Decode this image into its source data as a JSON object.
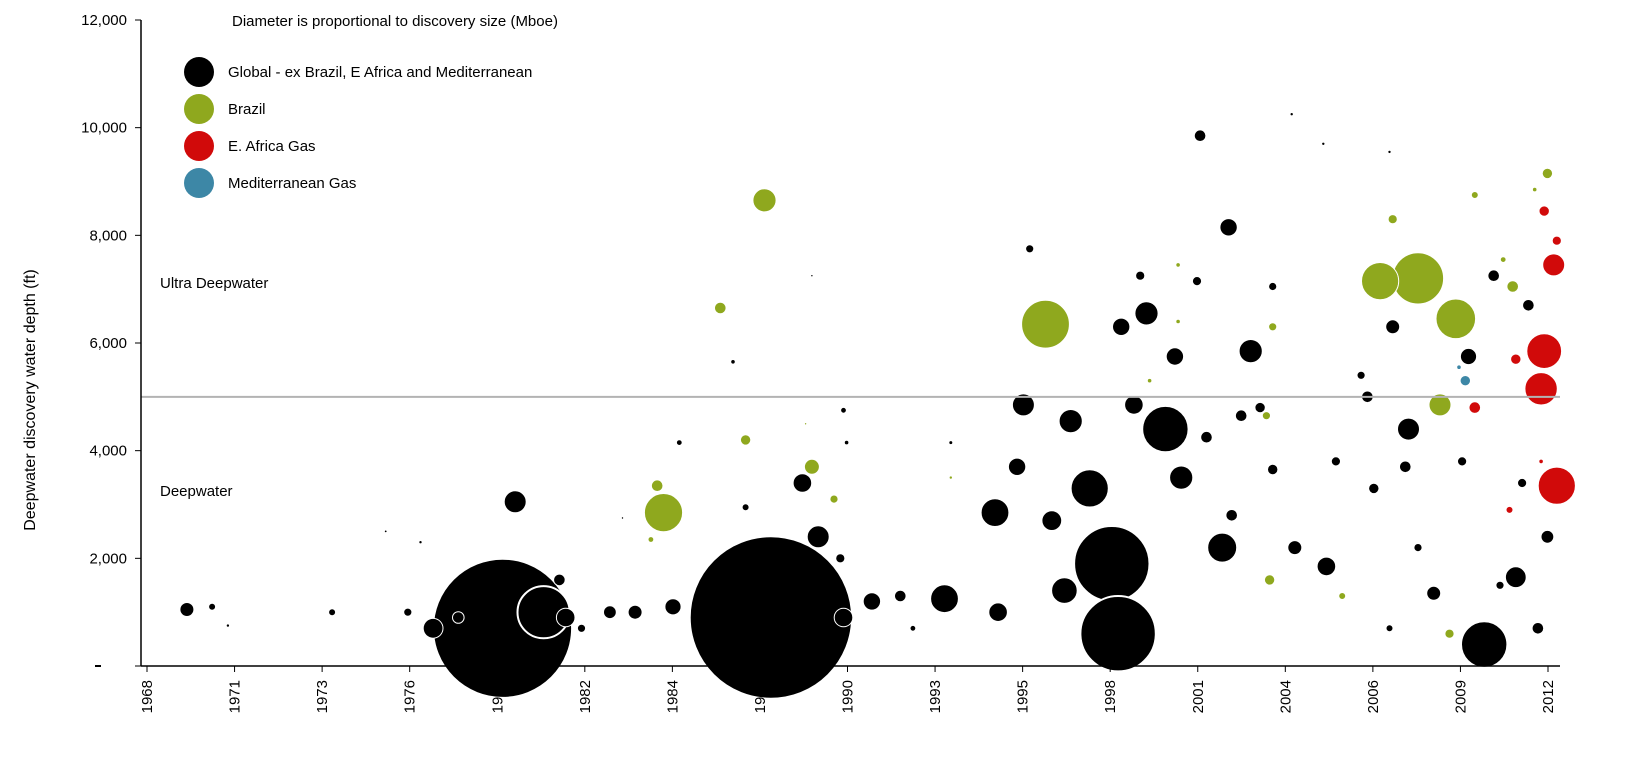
{
  "chart_data": {
    "type": "scatter",
    "subtype": "bubble",
    "annotation": "Diameter is proportional to discovery size (Mboe)",
    "ylabel": "Deepwater discovery water depth (ft)",
    "xlabel": "",
    "x_ticks": [
      "1968",
      "1971",
      "1973",
      "1976",
      "1979",
      "1982",
      "1984",
      "1987",
      "1990",
      "1993",
      "1995",
      "1998",
      "2001",
      "2004",
      "2006",
      "2009",
      "2012"
    ],
    "y_ticks": [
      "",
      "2,000",
      "4,000",
      "6,000",
      "8,000",
      "10,000",
      "12,000"
    ],
    "ylim": [
      0,
      12000
    ],
    "xlim": [
      1968,
      2013
    ],
    "grid": false,
    "legend_position": "top-left",
    "threshold": {
      "value": 5000,
      "above_label": "Ultra Deepwater",
      "below_label": "Deepwater"
    },
    "colors": {
      "global": "#000000",
      "brazil": "#8fa81e",
      "eafrica": "#d10a0a",
      "med": "#3d87a6",
      "threshold": "#b3b3b3"
    },
    "series": [
      {
        "key": "global",
        "name": "Global - ex Brazil, E Africa and Mediterranean",
        "points": [
          {
            "year": 1969.2,
            "depth": 1050,
            "size": 1.2
          },
          {
            "year": 1970.0,
            "depth": 1100,
            "size": 0.6
          },
          {
            "year": 1970.5,
            "depth": 750,
            "size": 0.3
          },
          {
            "year": 1973.8,
            "depth": 1000,
            "size": 0.6
          },
          {
            "year": 1975.5,
            "depth": 2500,
            "size": 0.25
          },
          {
            "year": 1976.2,
            "depth": 1000,
            "size": 0.7
          },
          {
            "year": 1976.6,
            "depth": 2300,
            "size": 0.3
          },
          {
            "year": 1977.0,
            "depth": 700,
            "size": 1.7
          },
          {
            "year": 1977.8,
            "depth": 900,
            "size": 1.0
          },
          {
            "year": 1979.2,
            "depth": 700,
            "size": 12
          },
          {
            "year": 1979.6,
            "depth": 3050,
            "size": 1.9
          },
          {
            "year": 1980.5,
            "depth": 1000,
            "size": 4.5
          },
          {
            "year": 1981.2,
            "depth": 900,
            "size": 1.6
          },
          {
            "year": 1981.0,
            "depth": 1600,
            "size": 1.0
          },
          {
            "year": 1981.7,
            "depth": 700,
            "size": 0.7
          },
          {
            "year": 1982.6,
            "depth": 1000,
            "size": 1.1
          },
          {
            "year": 1983.4,
            "depth": 1000,
            "size": 1.2
          },
          {
            "year": 1983.0,
            "depth": 2750,
            "size": 0.2
          },
          {
            "year": 1984.6,
            "depth": 1100,
            "size": 1.4
          },
          {
            "year": 1984.8,
            "depth": 4150,
            "size": 0.5
          },
          {
            "year": 1986.9,
            "depth": 2950,
            "size": 0.6
          },
          {
            "year": 1986.5,
            "depth": 5650,
            "size": 0.4
          },
          {
            "year": 1987.7,
            "depth": 900,
            "size": 14
          },
          {
            "year": 1989.0,
            "depth": 7250,
            "size": 0.2
          },
          {
            "year": 1988.7,
            "depth": 3400,
            "size": 1.6
          },
          {
            "year": 1989.2,
            "depth": 2400,
            "size": 1.9
          },
          {
            "year": 1989.9,
            "depth": 2000,
            "size": 0.8
          },
          {
            "year": 1990.0,
            "depth": 4750,
            "size": 0.5
          },
          {
            "year": 1990.1,
            "depth": 4150,
            "size": 0.4
          },
          {
            "year": 1990.0,
            "depth": 900,
            "size": 1.6
          },
          {
            "year": 1990.9,
            "depth": 1200,
            "size": 1.5
          },
          {
            "year": 1991.8,
            "depth": 1300,
            "size": 1.0
          },
          {
            "year": 1992.2,
            "depth": 700,
            "size": 0.5
          },
          {
            "year": 1993.2,
            "depth": 1250,
            "size": 2.4
          },
          {
            "year": 1993.4,
            "depth": 4150,
            "size": 0.35
          },
          {
            "year": 1994.8,
            "depth": 2850,
            "size": 2.4
          },
          {
            "year": 1994.9,
            "depth": 1000,
            "size": 1.6
          },
          {
            "year": 1995.7,
            "depth": 4850,
            "size": 1.9
          },
          {
            "year": 1995.5,
            "depth": 3700,
            "size": 1.5
          },
          {
            "year": 1995.9,
            "depth": 7750,
            "size": 0.7
          },
          {
            "year": 1996.6,
            "depth": 2700,
            "size": 1.7
          },
          {
            "year": 1997.2,
            "depth": 4550,
            "size": 2.0
          },
          {
            "year": 1997.0,
            "depth": 1400,
            "size": 2.2
          },
          {
            "year": 1997.8,
            "depth": 3300,
            "size": 3.2
          },
          {
            "year": 1998.8,
            "depth": 6300,
            "size": 1.5
          },
          {
            "year": 1998.5,
            "depth": 1900,
            "size": 6.5
          },
          {
            "year": 1998.7,
            "depth": 600,
            "size": 6.5
          },
          {
            "year": 1999.2,
            "depth": 4850,
            "size": 1.6
          },
          {
            "year": 1999.4,
            "depth": 7250,
            "size": 0.8
          },
          {
            "year": 1999.6,
            "depth": 6550,
            "size": 2.0
          },
          {
            "year": 2000.2,
            "depth": 4400,
            "size": 4.0
          },
          {
            "year": 2000.5,
            "depth": 5750,
            "size": 1.5
          },
          {
            "year": 2000.7,
            "depth": 3500,
            "size": 2.0
          },
          {
            "year": 2001.2,
            "depth": 7150,
            "size": 0.8
          },
          {
            "year": 2001.3,
            "depth": 9850,
            "size": 1.0
          },
          {
            "year": 2001.5,
            "depth": 4250,
            "size": 1.0
          },
          {
            "year": 2002.0,
            "depth": 2200,
            "size": 2.5
          },
          {
            "year": 2002.2,
            "depth": 8150,
            "size": 1.5
          },
          {
            "year": 2002.3,
            "depth": 2800,
            "size": 1.0
          },
          {
            "year": 2002.6,
            "depth": 4650,
            "size": 1.0
          },
          {
            "year": 2002.9,
            "depth": 5850,
            "size": 2.0
          },
          {
            "year": 2003.2,
            "depth": 4800,
            "size": 0.9
          },
          {
            "year": 2003.6,
            "depth": 7050,
            "size": 0.7
          },
          {
            "year": 2003.6,
            "depth": 3650,
            "size": 0.9
          },
          {
            "year": 2004.2,
            "depth": 10250,
            "size": 0.3
          },
          {
            "year": 2004.3,
            "depth": 2200,
            "size": 1.2
          },
          {
            "year": 2005.2,
            "depth": 9700,
            "size": 0.3
          },
          {
            "year": 2005.3,
            "depth": 1850,
            "size": 1.6
          },
          {
            "year": 2005.6,
            "depth": 3800,
            "size": 0.8
          },
          {
            "year": 2006.4,
            "depth": 5400,
            "size": 0.7
          },
          {
            "year": 2006.6,
            "depth": 5000,
            "size": 1.0
          },
          {
            "year": 2006.8,
            "depth": 3300,
            "size": 0.9
          },
          {
            "year": 2007.3,
            "depth": 9550,
            "size": 0.3
          },
          {
            "year": 2007.4,
            "depth": 6300,
            "size": 1.2
          },
          {
            "year": 2007.9,
            "depth": 4400,
            "size": 1.9
          },
          {
            "year": 2007.8,
            "depth": 3700,
            "size": 1.0
          },
          {
            "year": 2007.3,
            "depth": 700,
            "size": 0.6
          },
          {
            "year": 2008.2,
            "depth": 2200,
            "size": 0.7
          },
          {
            "year": 2008.7,
            "depth": 1350,
            "size": 1.2
          },
          {
            "year": 2009.8,
            "depth": 5750,
            "size": 1.4
          },
          {
            "year": 2009.6,
            "depth": 3800,
            "size": 0.8
          },
          {
            "year": 2010.3,
            "depth": 400,
            "size": 4.0
          },
          {
            "year": 2010.6,
            "depth": 7250,
            "size": 1.0
          },
          {
            "year": 2010.8,
            "depth": 1500,
            "size": 0.7
          },
          {
            "year": 2011.3,
            "depth": 1650,
            "size": 1.8
          },
          {
            "year": 2011.7,
            "depth": 6700,
            "size": 1.0
          },
          {
            "year": 2011.5,
            "depth": 3400,
            "size": 0.8
          },
          {
            "year": 2012.3,
            "depth": 2400,
            "size": 1.1
          },
          {
            "year": 2012.0,
            "depth": 700,
            "size": 1.0
          }
        ]
      },
      {
        "key": "brazil",
        "name": "Brazil",
        "points": [
          {
            "year": 1984.3,
            "depth": 2850,
            "size": 3.3
          },
          {
            "year": 1984.1,
            "depth": 3350,
            "size": 1.0
          },
          {
            "year": 1983.9,
            "depth": 2350,
            "size": 0.5
          },
          {
            "year": 1986.1,
            "depth": 6650,
            "size": 1.0
          },
          {
            "year": 1986.9,
            "depth": 4200,
            "size": 0.9
          },
          {
            "year": 1987.5,
            "depth": 8650,
            "size": 2.0
          },
          {
            "year": 1989.0,
            "depth": 3700,
            "size": 1.3
          },
          {
            "year": 1989.7,
            "depth": 3100,
            "size": 0.7
          },
          {
            "year": 1988.8,
            "depth": 4500,
            "size": 0.2
          },
          {
            "year": 1993.4,
            "depth": 3500,
            "size": 0.3
          },
          {
            "year": 1996.4,
            "depth": 6350,
            "size": 4.2
          },
          {
            "year": 1999.7,
            "depth": 5300,
            "size": 0.4
          },
          {
            "year": 2000.6,
            "depth": 7450,
            "size": 0.4
          },
          {
            "year": 2000.6,
            "depth": 6400,
            "size": 0.4
          },
          {
            "year": 2003.4,
            "depth": 4650,
            "size": 0.7
          },
          {
            "year": 2003.5,
            "depth": 1600,
            "size": 0.9
          },
          {
            "year": 2003.6,
            "depth": 6300,
            "size": 0.7
          },
          {
            "year": 2005.8,
            "depth": 1300,
            "size": 0.6
          },
          {
            "year": 2007.0,
            "depth": 7150,
            "size": 3.2
          },
          {
            "year": 2007.4,
            "depth": 8300,
            "size": 0.8
          },
          {
            "year": 2008.2,
            "depth": 7200,
            "size": 4.5
          },
          {
            "year": 2008.9,
            "depth": 4850,
            "size": 1.9
          },
          {
            "year": 2009.2,
            "depth": 600,
            "size": 0.8
          },
          {
            "year": 2009.4,
            "depth": 6450,
            "size": 3.5
          },
          {
            "year": 2010.0,
            "depth": 8750,
            "size": 0.6
          },
          {
            "year": 2010.9,
            "depth": 7550,
            "size": 0.5
          },
          {
            "year": 2011.2,
            "depth": 7050,
            "size": 1.0
          },
          {
            "year": 2011.9,
            "depth": 8850,
            "size": 0.4
          },
          {
            "year": 2012.3,
            "depth": 9150,
            "size": 0.9
          }
        ]
      },
      {
        "key": "eafrica",
        "name": "E. Africa Gas",
        "points": [
          {
            "year": 2010.0,
            "depth": 4800,
            "size": 1.0
          },
          {
            "year": 2011.1,
            "depth": 2900,
            "size": 0.6
          },
          {
            "year": 2011.3,
            "depth": 5700,
            "size": 0.9
          },
          {
            "year": 2012.1,
            "depth": 5150,
            "size": 2.8
          },
          {
            "year": 2012.2,
            "depth": 5850,
            "size": 3.0
          },
          {
            "year": 2012.6,
            "depth": 3350,
            "size": 3.2
          },
          {
            "year": 2012.5,
            "depth": 7450,
            "size": 1.9
          },
          {
            "year": 2012.2,
            "depth": 8450,
            "size": 0.9
          },
          {
            "year": 2012.6,
            "depth": 7900,
            "size": 0.8
          },
          {
            "year": 2012.1,
            "depth": 3800,
            "size": 0.4
          }
        ]
      },
      {
        "key": "med",
        "name": "Mediterranean Gas",
        "points": [
          {
            "year": 2009.7,
            "depth": 5300,
            "size": 0.9
          },
          {
            "year": 2009.5,
            "depth": 5550,
            "size": 0.4
          }
        ]
      }
    ]
  }
}
